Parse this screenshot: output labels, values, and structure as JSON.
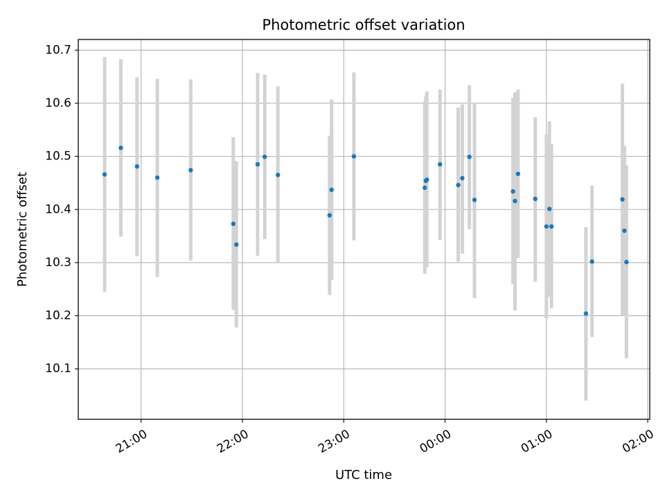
{
  "chart_data": {
    "type": "scatter",
    "title": "Photometric offset variation",
    "xlabel": "UTC time",
    "ylabel": "Photometric offset",
    "x_axis": {
      "unit": "UTC time (hours after 20:00)",
      "range": [
        20.38,
        26.02
      ],
      "ticks": [
        {
          "value": 21,
          "label": "21:00"
        },
        {
          "value": 22,
          "label": "22:00"
        },
        {
          "value": 23,
          "label": "23:00"
        },
        {
          "value": 24,
          "label": "00:00"
        },
        {
          "value": 25,
          "label": "01:00"
        },
        {
          "value": 26,
          "label": "02:00"
        }
      ]
    },
    "y_axis": {
      "range": [
        10.005,
        10.72
      ],
      "ticks": [
        {
          "value": 10.1,
          "label": "10.1"
        },
        {
          "value": 10.2,
          "label": "10.2"
        },
        {
          "value": 10.3,
          "label": "10.3"
        },
        {
          "value": 10.4,
          "label": "10.4"
        },
        {
          "value": 10.5,
          "label": "10.5"
        },
        {
          "value": 10.6,
          "label": "10.6"
        },
        {
          "value": 10.7,
          "label": "10.7"
        }
      ]
    },
    "grid": true,
    "point_color": "#1f77b4",
    "errorbar_color": "#d3d3d3",
    "points": [
      {
        "x": 20.64,
        "y": 10.466,
        "low": 10.245,
        "high": 10.687
      },
      {
        "x": 20.8,
        "y": 10.516,
        "low": 10.349,
        "high": 10.683
      },
      {
        "x": 20.96,
        "y": 10.481,
        "low": 10.312,
        "high": 10.649
      },
      {
        "x": 21.16,
        "y": 10.46,
        "low": 10.273,
        "high": 10.646
      },
      {
        "x": 21.49,
        "y": 10.474,
        "low": 10.304,
        "high": 10.645
      },
      {
        "x": 21.91,
        "y": 10.373,
        "low": 10.211,
        "high": 10.536
      },
      {
        "x": 21.94,
        "y": 10.334,
        "low": 10.178,
        "high": 10.491
      },
      {
        "x": 22.15,
        "y": 10.485,
        "low": 10.313,
        "high": 10.657
      },
      {
        "x": 22.22,
        "y": 10.499,
        "low": 10.344,
        "high": 10.654
      },
      {
        "x": 22.35,
        "y": 10.465,
        "low": 10.3,
        "high": 10.632
      },
      {
        "x": 22.86,
        "y": 10.389,
        "low": 10.239,
        "high": 10.539
      },
      {
        "x": 22.88,
        "y": 10.437,
        "low": 10.267,
        "high": 10.607
      },
      {
        "x": 23.1,
        "y": 10.5,
        "low": 10.342,
        "high": 10.658
      },
      {
        "x": 23.8,
        "y": 10.441,
        "low": 10.279,
        "high": 10.604
      },
      {
        "x": 23.81,
        "y": 10.454,
        "low": 10.294,
        "high": 10.614
      },
      {
        "x": 23.82,
        "y": 10.456,
        "low": 10.291,
        "high": 10.622
      },
      {
        "x": 23.95,
        "y": 10.485,
        "low": 10.343,
        "high": 10.626
      },
      {
        "x": 24.13,
        "y": 10.446,
        "low": 10.302,
        "high": 10.592
      },
      {
        "x": 24.17,
        "y": 10.459,
        "low": 10.317,
        "high": 10.598
      },
      {
        "x": 24.24,
        "y": 10.499,
        "low": 10.363,
        "high": 10.634
      },
      {
        "x": 24.29,
        "y": 10.418,
        "low": 10.233,
        "high": 10.6
      },
      {
        "x": 24.67,
        "y": 10.434,
        "low": 10.26,
        "high": 10.61
      },
      {
        "x": 24.69,
        "y": 10.416,
        "low": 10.21,
        "high": 10.621
      },
      {
        "x": 24.72,
        "y": 10.467,
        "low": 10.309,
        "high": 10.626
      },
      {
        "x": 24.89,
        "y": 10.42,
        "low": 10.264,
        "high": 10.574
      },
      {
        "x": 25.0,
        "y": 10.368,
        "low": 10.195,
        "high": 10.541
      },
      {
        "x": 25.03,
        "y": 10.401,
        "low": 10.236,
        "high": 10.566
      },
      {
        "x": 25.05,
        "y": 10.368,
        "low": 10.214,
        "high": 10.523
      },
      {
        "x": 25.39,
        "y": 10.204,
        "low": 10.04,
        "high": 10.367
      },
      {
        "x": 25.45,
        "y": 10.302,
        "low": 10.16,
        "high": 10.445
      },
      {
        "x": 25.75,
        "y": 10.419,
        "low": 10.2,
        "high": 10.637
      },
      {
        "x": 25.77,
        "y": 10.36,
        "low": 10.2,
        "high": 10.52
      },
      {
        "x": 25.79,
        "y": 10.301,
        "low": 10.12,
        "high": 10.483
      }
    ]
  }
}
